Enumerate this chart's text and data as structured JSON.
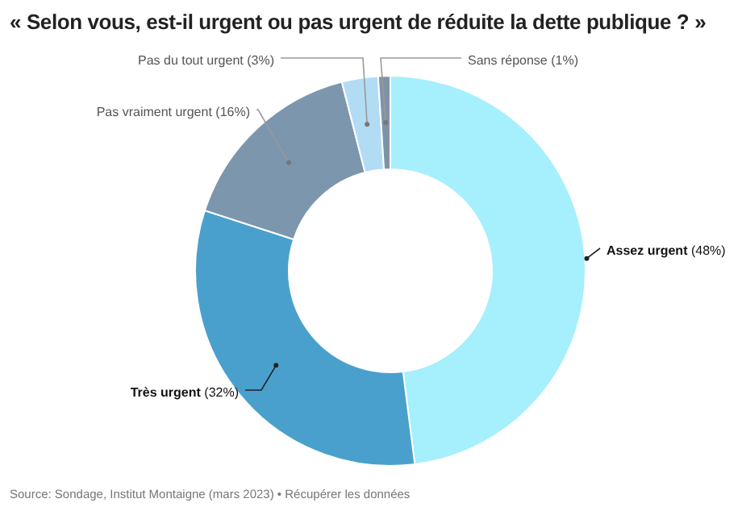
{
  "chart_data": {
    "type": "donut",
    "title": "« Selon vous, est-il urgent ou pas urgent de réduite la dette publique ? »",
    "categories": [
      "Assez urgent",
      "Très urgent",
      "Pas vraiment urgent",
      "Pas du tout urgent",
      "Sans réponse"
    ],
    "values": [
      48,
      32,
      16,
      3,
      1
    ],
    "colors": [
      "#a6effd",
      "#4aa0cd",
      "#7c96ae",
      "#b2dcf4",
      "#7f93a8"
    ],
    "value_labels": [
      "(48%)",
      "(32%)",
      "(16%)",
      "(3%)",
      "(1%)"
    ],
    "annotations": [
      "Source: Sondage, Institut Montaigne (mars 2023) • Récupérer les données"
    ]
  }
}
